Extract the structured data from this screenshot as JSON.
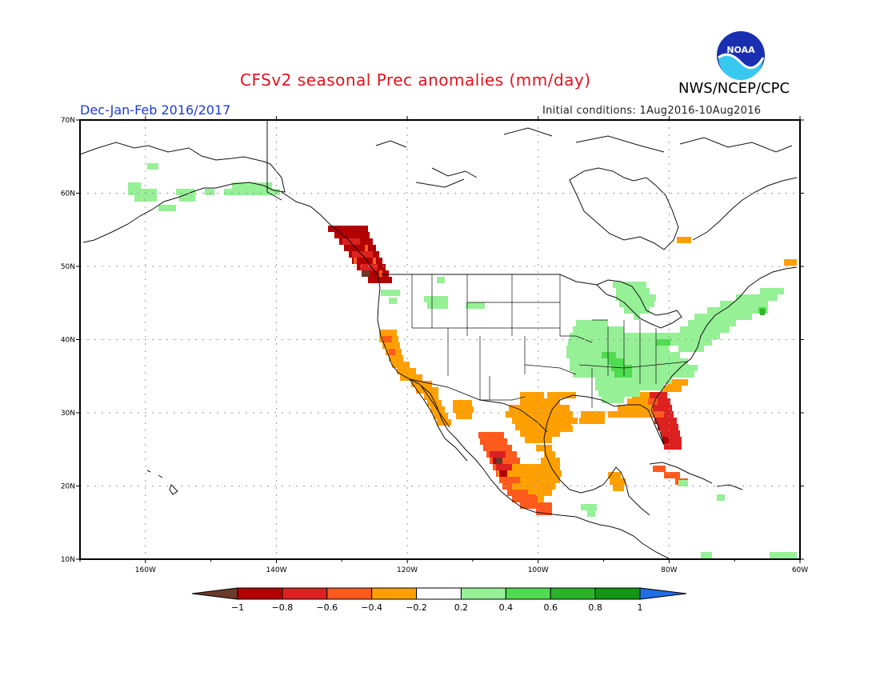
{
  "header": {
    "title": "CFSv2 seasonal Prec anomalies (mm/day)",
    "season": "Dec-Jan-Feb 2016/2017",
    "initial_conditions": "Initial conditions: 1Aug2016-10Aug2016",
    "agency": "NWS/NCEP/CPC",
    "logo_text": "NOAA"
  },
  "map": {
    "lat_labels": [
      "70N",
      "60N",
      "50N",
      "40N",
      "30N",
      "20N",
      "10N"
    ],
    "lon_labels": [
      "160W",
      "140W",
      "120W",
      "100W",
      "80W",
      "60W"
    ],
    "lat_range": [
      10,
      70
    ],
    "lon_range": [
      -170,
      -60
    ],
    "grid": true
  },
  "legend": {
    "tick_labels": [
      "-1",
      "-0.8",
      "-0.6",
      "-0.4",
      "-0.2",
      "0.2",
      "0.4",
      "0.6",
      "0.8",
      "1"
    ],
    "colors": {
      "below_min": "#6b3a2a",
      "neg_08_1": "#b30000",
      "neg_06_08": "#dd2020",
      "neg_04_06": "#ff5a1e",
      "neg_02_04": "#ffa000",
      "neutral": "#ffffff",
      "pos_02_04": "#96f096",
      "pos_04_06": "#50dc50",
      "pos_06_08": "#2ab42a",
      "pos_08_1": "#149614",
      "above_max": "#1e6ee6"
    }
  },
  "anomaly_regions": [
    {
      "name": "alaska",
      "category": "pos_02_04"
    },
    {
      "name": "pacific-northwest-coast",
      "category": "neg_08_1"
    },
    {
      "name": "california-coast",
      "category": "neg_02_04"
    },
    {
      "name": "baja-california",
      "category": "neg_02_04"
    },
    {
      "name": "west-mexico",
      "category": "neg_04_06"
    },
    {
      "name": "central-mexico",
      "category": "neg_02_04"
    },
    {
      "name": "texas",
      "category": "neg_02_04"
    },
    {
      "name": "florida",
      "category": "neg_06_08"
    },
    {
      "name": "southeast-coast",
      "category": "neg_02_04"
    },
    {
      "name": "ohio-valley",
      "category": "pos_02_04"
    },
    {
      "name": "great-lakes",
      "category": "pos_02_04"
    },
    {
      "name": "new-england",
      "category": "pos_02_04"
    },
    {
      "name": "cuba",
      "category": "neg_04_06"
    }
  ]
}
